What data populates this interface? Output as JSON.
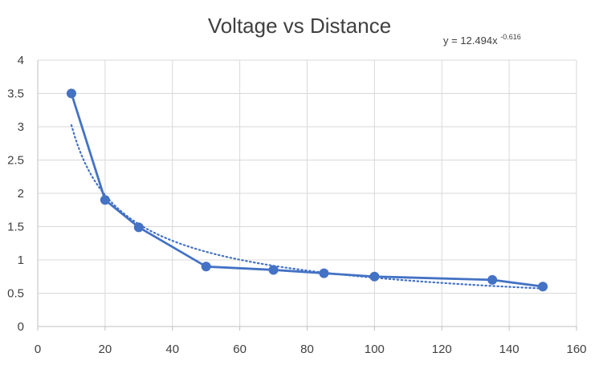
{
  "chart_data": {
    "type": "scatter",
    "title": "Voltage  vs Distance",
    "xlabel": "",
    "ylabel": "",
    "xlim": [
      0,
      160
    ],
    "ylim": [
      0,
      4
    ],
    "x_ticks": [
      0,
      20,
      40,
      60,
      80,
      100,
      120,
      140,
      160
    ],
    "y_ticks": [
      0,
      0.5,
      1,
      1.5,
      2,
      2.5,
      3,
      3.5,
      4
    ],
    "grid": true,
    "legend": "none",
    "series": [
      {
        "x": [
          10,
          20,
          30,
          50,
          70,
          85,
          100,
          135,
          150
        ],
        "y": [
          3.5,
          1.9,
          1.49,
          0.9,
          0.85,
          0.8,
          0.75,
          0.7,
          0.6
        ],
        "color": "#4472c4",
        "style": "line-with-markers"
      }
    ],
    "trendline": {
      "type": "power",
      "a": 12.494,
      "b": -0.616,
      "x_range": [
        10,
        150
      ],
      "style": "dotted",
      "color": "#4472c4",
      "equation_base": "y = 12.494x",
      "equation_exponent": "-0.616"
    }
  }
}
